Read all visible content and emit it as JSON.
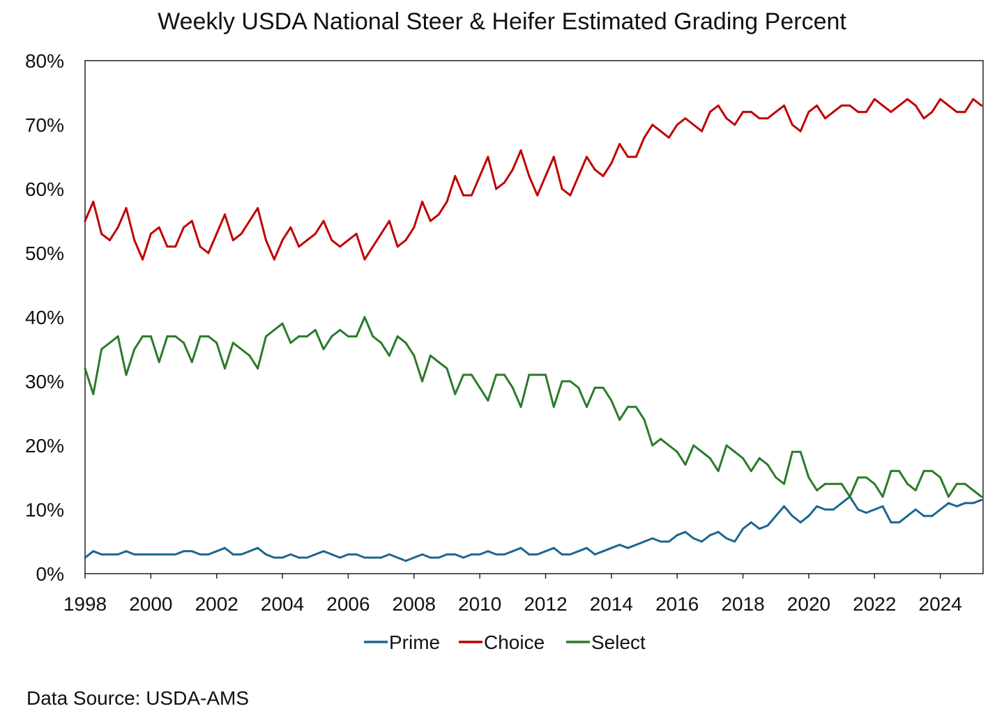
{
  "chart_data": {
    "type": "line",
    "title": "Weekly USDA National Steer & Heifer Estimated Grading Percent",
    "source": "Data Source: USDA-AMS",
    "xlabel": "",
    "ylabel": "",
    "xlim": [
      1998,
      2025.3
    ],
    "ylim": [
      0,
      80
    ],
    "x_ticks": [
      "1998",
      "2000",
      "2002",
      "2004",
      "2006",
      "2008",
      "2010",
      "2012",
      "2014",
      "2016",
      "2018",
      "2020",
      "2022",
      "2024"
    ],
    "y_ticks": [
      "0%",
      "10%",
      "20%",
      "30%",
      "40%",
      "50%",
      "60%",
      "70%",
      "80%"
    ],
    "grid": false,
    "legend": "bottom",
    "x": [
      1998,
      1998.25,
      1998.5,
      1998.75,
      1999,
      1999.25,
      1999.5,
      1999.75,
      2000,
      2000.25,
      2000.5,
      2000.75,
      2001,
      2001.25,
      2001.5,
      2001.75,
      2002,
      2002.25,
      2002.5,
      2002.75,
      2003,
      2003.25,
      2003.5,
      2003.75,
      2004,
      2004.25,
      2004.5,
      2004.75,
      2005,
      2005.25,
      2005.5,
      2005.75,
      2006,
      2006.25,
      2006.5,
      2006.75,
      2007,
      2007.25,
      2007.5,
      2007.75,
      2008,
      2008.25,
      2008.5,
      2008.75,
      2009,
      2009.25,
      2009.5,
      2009.75,
      2010,
      2010.25,
      2010.5,
      2010.75,
      2011,
      2011.25,
      2011.5,
      2011.75,
      2012,
      2012.25,
      2012.5,
      2012.75,
      2013,
      2013.25,
      2013.5,
      2013.75,
      2014,
      2014.25,
      2014.5,
      2014.75,
      2015,
      2015.25,
      2015.5,
      2015.75,
      2016,
      2016.25,
      2016.5,
      2016.75,
      2017,
      2017.25,
      2017.5,
      2017.75,
      2018,
      2018.25,
      2018.5,
      2018.75,
      2019,
      2019.25,
      2019.5,
      2019.75,
      2020,
      2020.25,
      2020.5,
      2020.75,
      2021,
      2021.25,
      2021.5,
      2021.75,
      2022,
      2022.25,
      2022.5,
      2022.75,
      2023,
      2023.25,
      2023.5,
      2023.75,
      2024,
      2024.25,
      2024.5,
      2024.75,
      2025,
      2025.25
    ],
    "series": [
      {
        "name": "Prime",
        "color": "#1d6690",
        "values": [
          2.5,
          3.5,
          3,
          3,
          3,
          3.5,
          3,
          3,
          3,
          3,
          3,
          3,
          3.5,
          3.5,
          3,
          3,
          3.5,
          4,
          3,
          3,
          3.5,
          4,
          3,
          2.5,
          2.5,
          3,
          2.5,
          2.5,
          3,
          3.5,
          3,
          2.5,
          3,
          3,
          2.5,
          2.5,
          2.5,
          3,
          2.5,
          2,
          2.5,
          3,
          2.5,
          2.5,
          3,
          3,
          2.5,
          3,
          3,
          3.5,
          3,
          3,
          3.5,
          4,
          3,
          3,
          3.5,
          4,
          3,
          3,
          3.5,
          4,
          3,
          3.5,
          4,
          4.5,
          4,
          4.5,
          5,
          5.5,
          5,
          5,
          6,
          6.5,
          5.5,
          5,
          6,
          6.5,
          5.5,
          5,
          7,
          8,
          7,
          7.5,
          9,
          10.5,
          9,
          8,
          9,
          10.5,
          10,
          10,
          11,
          12,
          10,
          9.5,
          10,
          10.5,
          8,
          8,
          9,
          10,
          9,
          9,
          10,
          11,
          10.5,
          11,
          11,
          11.5
        ]
      },
      {
        "name": "Choice",
        "color": "#c00000",
        "values": [
          55,
          58,
          53,
          52,
          54,
          57,
          52,
          49,
          53,
          54,
          51,
          51,
          54,
          55,
          51,
          50,
          53,
          56,
          52,
          53,
          55,
          57,
          52,
          49,
          52,
          54,
          51,
          52,
          53,
          55,
          52,
          51,
          52,
          53,
          49,
          51,
          53,
          55,
          51,
          52,
          54,
          58,
          55,
          56,
          58,
          62,
          59,
          59,
          62,
          65,
          60,
          61,
          63,
          66,
          62,
          59,
          62,
          65,
          60,
          59,
          62,
          65,
          63,
          62,
          64,
          67,
          65,
          65,
          68,
          70,
          69,
          68,
          70,
          71,
          70,
          69,
          72,
          73,
          71,
          70,
          72,
          72,
          71,
          71,
          72,
          73,
          70,
          69,
          72,
          73,
          71,
          72,
          73,
          73,
          72,
          72,
          74,
          73,
          72,
          73,
          74,
          73,
          71,
          72,
          74,
          73,
          72,
          72,
          74,
          73
        ]
      },
      {
        "name": "Select",
        "color": "#2b7a2b",
        "values": [
          32,
          28,
          35,
          36,
          37,
          31,
          35,
          37,
          37,
          33,
          37,
          37,
          36,
          33,
          37,
          37,
          36,
          32,
          36,
          35,
          34,
          32,
          37,
          38,
          39,
          36,
          37,
          37,
          38,
          35,
          37,
          38,
          37,
          37,
          40,
          37,
          36,
          34,
          37,
          36,
          34,
          30,
          34,
          33,
          32,
          28,
          31,
          31,
          29,
          27,
          31,
          31,
          29,
          26,
          31,
          31,
          31,
          26,
          30,
          30,
          29,
          26,
          29,
          29,
          27,
          24,
          26,
          26,
          24,
          20,
          21,
          20,
          19,
          17,
          20,
          19,
          18,
          16,
          20,
          19,
          18,
          16,
          18,
          17,
          15,
          14,
          19,
          19,
          15,
          13,
          14,
          14,
          14,
          12,
          15,
          15,
          14,
          12,
          16,
          16,
          14,
          13,
          16,
          16,
          15,
          12,
          14,
          14,
          13,
          12
        ]
      }
    ]
  }
}
